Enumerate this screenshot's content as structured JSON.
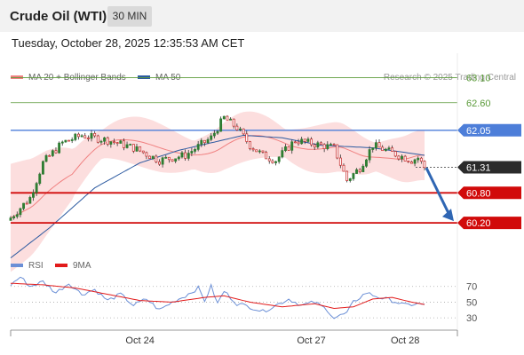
{
  "header": {
    "title": "Crude Oil (WTI)",
    "timeframe": "30 MIN"
  },
  "datetime": "Tuesday, October 28, 2025 12:35:53 AM CET",
  "colors": {
    "bollinger": "#f08080",
    "band_fill": "#fbd3d3",
    "ma50": "#2c5aa0",
    "resistance": "#5b9b3a",
    "pivot": "#4d7ed9",
    "support": "#d10a0a",
    "last_price": "#2b2b2b",
    "arrow": "#2f66b3",
    "candle_up": "#2e7d32",
    "candle_down": "#c62828",
    "rsi": "#6b8fd6",
    "ma9": "#e21b1b"
  },
  "chart_data": [
    {
      "type": "line",
      "legend": [
        {
          "name": "MA 20 + Bollinger Bands",
          "color": "#f08080"
        },
        {
          "name": "MA 50",
          "color": "#2c5aa0"
        }
      ],
      "watermark": "Research © 2025 Trading Central",
      "x_tick_labels": [
        "Oct 24",
        "Oct 27",
        "Oct 28"
      ],
      "y_range": [
        59.6,
        63.5
      ],
      "last_price": 61.31,
      "levels": [
        {
          "value": 63.1,
          "label": "63.10",
          "kind": "resistance"
        },
        {
          "value": 62.6,
          "label": "62.60",
          "kind": "resistance"
        },
        {
          "value": 62.05,
          "label": "62.05",
          "kind": "pivot"
        },
        {
          "value": 61.31,
          "label": "61.31",
          "kind": "last"
        },
        {
          "value": 60.8,
          "label": "60.80",
          "kind": "support"
        },
        {
          "value": 60.2,
          "label": "60.20",
          "kind": "support"
        }
      ],
      "forecast": {
        "from": 61.3,
        "to": 60.2,
        "direction": "down"
      },
      "close_anchors": [
        [
          0,
          60.3
        ],
        [
          6,
          60.7
        ],
        [
          10,
          61.4
        ],
        [
          16,
          61.8
        ],
        [
          22,
          61.95
        ],
        [
          30,
          61.85
        ],
        [
          38,
          61.7
        ],
        [
          46,
          61.45
        ],
        [
          54,
          61.55
        ],
        [
          62,
          61.9
        ],
        [
          66,
          62.3
        ],
        [
          70,
          62.1
        ],
        [
          74,
          61.75
        ],
        [
          78,
          61.55
        ],
        [
          82,
          61.45
        ],
        [
          88,
          61.85
        ],
        [
          96,
          61.75
        ],
        [
          100,
          61.7
        ],
        [
          104,
          61.05
        ],
        [
          108,
          61.3
        ],
        [
          112,
          61.75
        ],
        [
          118,
          61.6
        ],
        [
          124,
          61.45
        ],
        [
          126,
          61.5
        ],
        [
          128,
          61.31
        ]
      ],
      "ma50_anchors": [
        [
          0,
          59.5
        ],
        [
          12,
          60.1
        ],
        [
          26,
          60.9
        ],
        [
          40,
          61.4
        ],
        [
          52,
          61.65
        ],
        [
          62,
          61.8
        ],
        [
          72,
          61.95
        ],
        [
          84,
          61.9
        ],
        [
          96,
          61.75
        ],
        [
          112,
          61.7
        ],
        [
          128,
          61.55
        ]
      ]
    },
    {
      "type": "line",
      "legend": [
        {
          "name": "RSI",
          "color": "#6b8fd6"
        },
        {
          "name": "9MA",
          "color": "#e21b1b"
        }
      ],
      "y_ticks": [
        70,
        50,
        30
      ],
      "y_range": [
        20,
        90
      ],
      "rsi_anchors": [
        [
          0,
          72
        ],
        [
          3,
          82
        ],
        [
          6,
          70
        ],
        [
          10,
          76
        ],
        [
          14,
          62
        ],
        [
          18,
          74
        ],
        [
          22,
          60
        ],
        [
          26,
          66
        ],
        [
          30,
          52
        ],
        [
          34,
          60
        ],
        [
          38,
          46
        ],
        [
          42,
          54
        ],
        [
          46,
          40
        ],
        [
          50,
          50
        ],
        [
          54,
          58
        ],
        [
          58,
          68
        ],
        [
          60,
          52
        ],
        [
          62,
          70
        ],
        [
          64,
          48
        ],
        [
          66,
          64
        ],
        [
          70,
          48
        ],
        [
          74,
          44
        ],
        [
          78,
          38
        ],
        [
          82,
          46
        ],
        [
          86,
          54
        ],
        [
          90,
          46
        ],
        [
          94,
          50
        ],
        [
          98,
          40
        ],
        [
          100,
          30
        ],
        [
          104,
          36
        ],
        [
          106,
          50
        ],
        [
          110,
          62
        ],
        [
          114,
          56
        ],
        [
          118,
          52
        ],
        [
          122,
          46
        ],
        [
          126,
          48
        ],
        [
          128,
          46
        ]
      ],
      "ma9_anchors": [
        [
          0,
          74
        ],
        [
          10,
          72
        ],
        [
          20,
          68
        ],
        [
          30,
          60
        ],
        [
          40,
          52
        ],
        [
          50,
          50
        ],
        [
          60,
          56
        ],
        [
          66,
          58
        ],
        [
          74,
          50
        ],
        [
          84,
          44
        ],
        [
          94,
          48
        ],
        [
          100,
          42
        ],
        [
          106,
          44
        ],
        [
          112,
          54
        ],
        [
          118,
          56
        ],
        [
          124,
          50
        ],
        [
          128,
          47
        ]
      ]
    }
  ]
}
